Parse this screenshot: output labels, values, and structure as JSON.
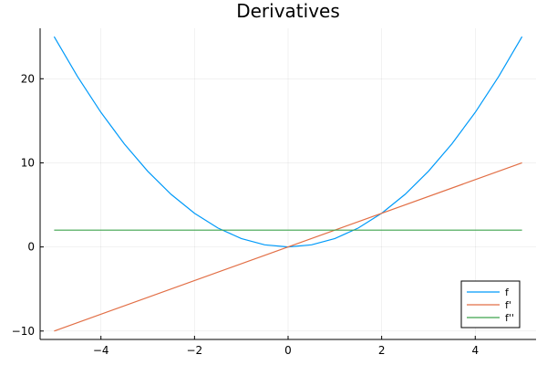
{
  "chart_data": {
    "type": "line",
    "title": "Derivatives",
    "xlabel": "",
    "ylabel": "",
    "xlim": [
      -5.3,
      5.3
    ],
    "ylim": [
      -11.0,
      26.0
    ],
    "xticks": [
      -4,
      -2,
      0,
      2,
      4
    ],
    "yticks": [
      -10,
      0,
      10,
      20
    ],
    "xtick_labels": [
      "−4",
      "−2",
      "0",
      "2",
      "4"
    ],
    "ytick_labels": [
      "−10",
      "0",
      "10",
      "20"
    ],
    "grid": true,
    "legend_position": "bottom-right",
    "series": [
      {
        "name": "f",
        "color": "#009af9",
        "x": [
          -5,
          -4.5,
          -4,
          -3.5,
          -3,
          -2.5,
          -2,
          -1.5,
          -1,
          -0.5,
          0,
          0.5,
          1,
          1.5,
          2,
          2.5,
          3,
          3.5,
          4,
          4.5,
          5
        ],
        "y": [
          25,
          20.25,
          16,
          12.25,
          9,
          6.25,
          4,
          2.25,
          1,
          0.25,
          0,
          0.25,
          1,
          2.25,
          4,
          6.25,
          9,
          12.25,
          16,
          20.25,
          25
        ]
      },
      {
        "name": "f'",
        "color": "#e26f46",
        "x": [
          -5,
          5
        ],
        "y": [
          -10,
          10
        ]
      },
      {
        "name": "f''",
        "color": "#3da44d",
        "x": [
          -5,
          5
        ],
        "y": [
          2,
          2
        ]
      }
    ]
  }
}
